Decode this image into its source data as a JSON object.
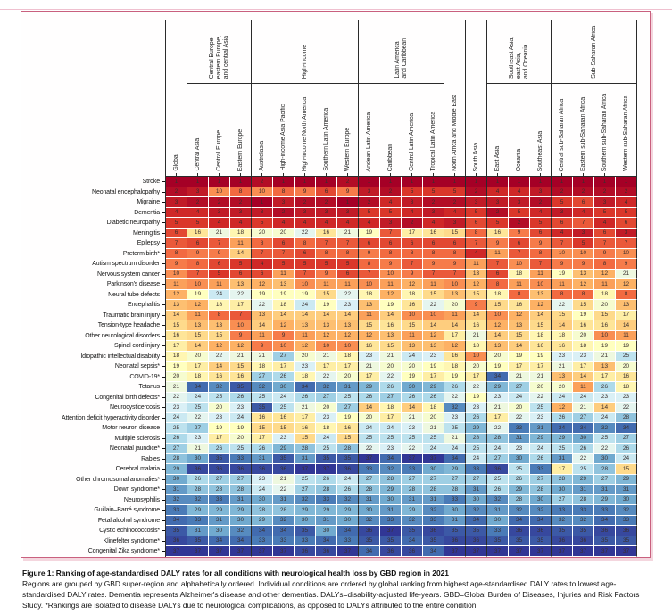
{
  "figure": {
    "caption_title": "Figure 1: Ranking of age-standardised DALY rates for all conditions with neurological health loss by GBD region in 2021",
    "caption_body": "Regions are grouped by GBD super-region and alphabetically ordered. Individual conditions are ordered by global ranking from highest age-standardised DALY rates to lowest age-standardised DALY rates. Dementia represents Alzheimer's disease and other dementias. DALYs=disability-adjusted life-years. GBD=Global Burden of Diseases, Injuries and Risk Factors Study. *Rankings are isolated to disease DALYs due to neurological complications, as opposed to DALYs attributed to the entire condition."
  },
  "colors": {
    "frame_pink": "#c9607e",
    "frame_shadow_pink": "#f4d6de",
    "grid_line_white": "#ffffff",
    "separator_black": "#2b2b2b"
  },
  "chart_data": {
    "type": "heatmap",
    "title": "Ranking of age-standardised DALY rates for all conditions with neurological health loss by GBD region in 2021",
    "value_meaning": "Rank within each region: 1 = highest age-standardised DALY rate, 37 = lowest",
    "color_scale": {
      "domain": [
        1,
        37
      ],
      "stops": [
        "#a50026",
        "#d73027",
        "#f46d43",
        "#fdae61",
        "#fee090",
        "#ffffbf",
        "#e0f3f8",
        "#abd9e9",
        "#74add1",
        "#4575b4",
        "#313695"
      ]
    },
    "column_groups": [
      {
        "super_label": null,
        "columns": [
          "Global"
        ]
      },
      {
        "super_label": "Central Europe,\neastern Europe,\nand central Asia",
        "columns": [
          "Central Asia",
          "Central Europe",
          "Eastern Europe"
        ]
      },
      {
        "super_label": "High-income",
        "columns": [
          "Australasia",
          "High-income Asia Pacific",
          "High-income North America",
          "Southern Latin America",
          "Western Europe"
        ]
      },
      {
        "super_label": "Latin America\nand Caribbean",
        "columns": [
          "Andean Latin America",
          "Caribbean",
          "Central Latin America",
          "Tropical Latin America"
        ]
      },
      {
        "super_label": null,
        "columns": [
          "North Africa and Middle East"
        ]
      },
      {
        "super_label": null,
        "columns": [
          "South Asia"
        ]
      },
      {
        "super_label": "Southeast Asia,\neast Asia,\nand Oceania",
        "columns": [
          "East Asia",
          "Oceania",
          "Southeast Asia"
        ]
      },
      {
        "super_label": "Sub-Saharan Africa",
        "columns": [
          "Central sub-Saharan Africa",
          "Eastern sub-Saharan Africa",
          "Southern sub-Saharan Africa",
          "Western sub-Saharan Africa"
        ]
      }
    ],
    "row_labels": [
      "Stroke",
      "Neonatal encephalopathy",
      "Migraine",
      "Dementia",
      "Diabetic neuropathy",
      "Meningitis",
      "Epilepsy",
      "Preterm birth*",
      "Autism spectrum disorder",
      "Nervous system cancer",
      "Parkinson's disease",
      "Neural tube defects",
      "Encephalitis",
      "Traumatic brain injury",
      "Tension-type headache",
      "Other neurological disorders",
      "Spinal cord injury",
      "Idiopathic intellectual disability",
      "Neonatal sepsis*",
      "COVID-19*",
      "Tetanus",
      "Congenital birth defects*",
      "Neurocysticercosis",
      "Attention deficit hyperactivity disorder",
      "Motor neuron disease",
      "Multiple sclerosis",
      "Neonatal jaundice*",
      "Rabies",
      "Cerebral malaria",
      "Other chromosomal anomalies*",
      "Down syndrome*",
      "Neurosyphilis",
      "Guillain–Barré syndrome",
      "Fetal alcohol syndrome",
      "Cystic echinococcosis*",
      "Klinefelter syndrome*",
      "Congenital Zika syndrome*"
    ],
    "values": [
      [
        1,
        1,
        1,
        1,
        2,
        1,
        1,
        1,
        2,
        1,
        1,
        1,
        1,
        1,
        1,
        1,
        1,
        1,
        1,
        1,
        1,
        1
      ],
      [
        2,
        3,
        10,
        8,
        10,
        8,
        9,
        6,
        9,
        3,
        2,
        5,
        5,
        5,
        2,
        4,
        4,
        3,
        2,
        2,
        2,
        2
      ],
      [
        3,
        2,
        2,
        2,
        1,
        3,
        2,
        2,
        1,
        2,
        4,
        3,
        2,
        2,
        3,
        3,
        3,
        2,
        5,
        6,
        3,
        4
      ],
      [
        4,
        4,
        3,
        3,
        3,
        2,
        3,
        3,
        3,
        5,
        5,
        4,
        3,
        4,
        5,
        2,
        5,
        4,
        3,
        4,
        5,
        5
      ],
      [
        5,
        5,
        4,
        4,
        5,
        4,
        4,
        4,
        4,
        4,
        3,
        2,
        4,
        3,
        6,
        5,
        2,
        5,
        6,
        7,
        4,
        6
      ],
      [
        6,
        16,
        21,
        18,
        20,
        20,
        22,
        16,
        21,
        19,
        7,
        17,
        16,
        15,
        8,
        16,
        9,
        6,
        4,
        3,
        6,
        3
      ],
      [
        7,
        6,
        7,
        11,
        8,
        6,
        8,
        7,
        7,
        6,
        6,
        6,
        6,
        6,
        7,
        9,
        6,
        9,
        7,
        5,
        7,
        7
      ],
      [
        8,
        9,
        9,
        14,
        7,
        7,
        6,
        8,
        8,
        9,
        8,
        8,
        8,
        8,
        4,
        11,
        7,
        8,
        10,
        10,
        9,
        10
      ],
      [
        9,
        8,
        6,
        5,
        4,
        5,
        5,
        5,
        5,
        8,
        9,
        7,
        9,
        9,
        11,
        7,
        10,
        7,
        9,
        9,
        8,
        9
      ],
      [
        10,
        7,
        5,
        6,
        6,
        11,
        7,
        9,
        6,
        7,
        10,
        9,
        7,
        7,
        13,
        6,
        18,
        11,
        19,
        13,
        12,
        21
      ],
      [
        11,
        10,
        11,
        13,
        12,
        13,
        10,
        11,
        11,
        10,
        11,
        12,
        11,
        10,
        12,
        8,
        11,
        10,
        11,
        12,
        11,
        12
      ],
      [
        12,
        19,
        24,
        22,
        19,
        19,
        19,
        15,
        22,
        18,
        12,
        18,
        15,
        13,
        15,
        18,
        8,
        13,
        8,
        8,
        18,
        8
      ],
      [
        13,
        12,
        18,
        17,
        22,
        18,
        24,
        19,
        23,
        13,
        19,
        16,
        22,
        20,
        9,
        15,
        16,
        12,
        22,
        15,
        20,
        13
      ],
      [
        14,
        11,
        8,
        7,
        13,
        14,
        14,
        14,
        14,
        11,
        14,
        10,
        10,
        11,
        14,
        10,
        12,
        14,
        15,
        19,
        15,
        17
      ],
      [
        15,
        13,
        13,
        10,
        14,
        12,
        13,
        13,
        13,
        15,
        16,
        15,
        14,
        14,
        16,
        12,
        13,
        15,
        14,
        16,
        16,
        14
      ],
      [
        16,
        15,
        15,
        9,
        11,
        9,
        11,
        12,
        12,
        12,
        13,
        11,
        12,
        17,
        21,
        14,
        15,
        18,
        18,
        20,
        10,
        11
      ],
      [
        17,
        14,
        12,
        12,
        9,
        10,
        12,
        10,
        10,
        16,
        15,
        13,
        13,
        12,
        18,
        13,
        14,
        16,
        16,
        18,
        19,
        19
      ],
      [
        18,
        20,
        22,
        21,
        21,
        27,
        20,
        21,
        18,
        23,
        21,
        24,
        23,
        16,
        10,
        20,
        19,
        19,
        23,
        23,
        21,
        25
      ],
      [
        19,
        17,
        14,
        15,
        18,
        17,
        23,
        17,
        17,
        21,
        20,
        20,
        19,
        18,
        20,
        19,
        17,
        17,
        21,
        17,
        13,
        20
      ],
      [
        20,
        18,
        16,
        16,
        27,
        26,
        18,
        22,
        20,
        17,
        22,
        19,
        17,
        19,
        17,
        34,
        21,
        21,
        13,
        14,
        17,
        16
      ],
      [
        21,
        34,
        32,
        35,
        32,
        30,
        34,
        32,
        31,
        29,
        26,
        30,
        29,
        26,
        22,
        29,
        27,
        20,
        20,
        11,
        26,
        18
      ],
      [
        22,
        24,
        25,
        26,
        25,
        24,
        26,
        27,
        25,
        26,
        27,
        26,
        26,
        22,
        19,
        23,
        24,
        22,
        24,
        24,
        23,
        23
      ],
      [
        23,
        25,
        20,
        23,
        35,
        25,
        21,
        20,
        27,
        14,
        18,
        14,
        18,
        32,
        23,
        21,
        20,
        25,
        12,
        21,
        14,
        22
      ],
      [
        24,
        22,
        23,
        24,
        16,
        16,
        17,
        23,
        19,
        20,
        17,
        21,
        20,
        23,
        26,
        17,
        22,
        23,
        26,
        27,
        24,
        28
      ],
      [
        25,
        27,
        19,
        19,
        15,
        15,
        16,
        18,
        16,
        24,
        24,
        23,
        21,
        25,
        29,
        22,
        33,
        31,
        34,
        34,
        32,
        34
      ],
      [
        26,
        23,
        17,
        20,
        17,
        23,
        15,
        24,
        15,
        25,
        25,
        25,
        25,
        21,
        28,
        28,
        31,
        29,
        29,
        30,
        25,
        27
      ],
      [
        27,
        21,
        26,
        25,
        26,
        29,
        28,
        25,
        28,
        22,
        23,
        22,
        24,
        24,
        25,
        24,
        23,
        24,
        25,
        26,
        22,
        26
      ],
      [
        28,
        30,
        35,
        33,
        31,
        35,
        31,
        35,
        35,
        37,
        34,
        37,
        37,
        34,
        24,
        27,
        30,
        26,
        31,
        22,
        30,
        24
      ],
      [
        29,
        36,
        36,
        36,
        36,
        36,
        37,
        37,
        36,
        33,
        32,
        33,
        30,
        29,
        33,
        36,
        25,
        33,
        17,
        25,
        28,
        15
      ],
      [
        30,
        26,
        27,
        27,
        23,
        21,
        25,
        26,
        24,
        27,
        28,
        27,
        27,
        27,
        27,
        25,
        26,
        27,
        28,
        29,
        27,
        29
      ],
      [
        31,
        28,
        28,
        28,
        24,
        22,
        27,
        28,
        26,
        28,
        29,
        28,
        28,
        28,
        31,
        26,
        29,
        28,
        30,
        31,
        31,
        31
      ],
      [
        32,
        32,
        33,
        31,
        30,
        31,
        32,
        33,
        32,
        31,
        30,
        31,
        31,
        33,
        30,
        32,
        28,
        30,
        27,
        28,
        29,
        30
      ],
      [
        33,
        29,
        29,
        29,
        28,
        28,
        29,
        29,
        29,
        30,
        31,
        29,
        32,
        30,
        32,
        31,
        32,
        32,
        33,
        33,
        33,
        32
      ],
      [
        34,
        33,
        31,
        30,
        29,
        32,
        30,
        31,
        30,
        32,
        33,
        32,
        33,
        31,
        34,
        30,
        34,
        34,
        32,
        32,
        34,
        33
      ],
      [
        35,
        31,
        30,
        32,
        34,
        34,
        35,
        30,
        34,
        36,
        37,
        35,
        36,
        35,
        35,
        33,
        36,
        36,
        35,
        35,
        36,
        36
      ],
      [
        36,
        35,
        34,
        34,
        33,
        33,
        33,
        34,
        33,
        35,
        35,
        34,
        35,
        36,
        36,
        35,
        35,
        35,
        36,
        36,
        35,
        35
      ],
      [
        37,
        37,
        37,
        37,
        37,
        37,
        36,
        36,
        37,
        34,
        36,
        36,
        34,
        37,
        37,
        37,
        37,
        37,
        37,
        37,
        37,
        37
      ]
    ]
  }
}
